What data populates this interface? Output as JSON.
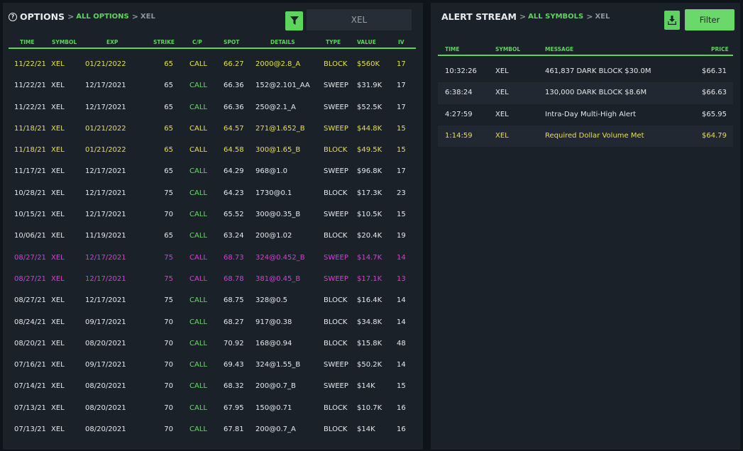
{
  "options": {
    "title": "OPTIONS",
    "crumb_link": "ALL OPTIONS",
    "crumb_symbol": "XEL",
    "search_value": "XEL",
    "headers": [
      "TIME",
      "SYMBOL",
      "EXP",
      "STRIKE",
      "C/P",
      "SPOT",
      "DETAILS",
      "TYPE",
      "VALUE",
      "IV"
    ],
    "rows": [
      {
        "time": "11/22/21",
        "symbol": "XEL",
        "exp": "01/21/2022",
        "strike": "65",
        "cp": "CALL",
        "spot": "66.27",
        "details": "2000@2.8_A",
        "type": "BLOCK",
        "value": "$560K",
        "iv": "17",
        "hl": "y"
      },
      {
        "time": "11/22/21",
        "symbol": "XEL",
        "exp": "12/17/2021",
        "strike": "65",
        "cp": "CALL",
        "spot": "66.36",
        "details": "152@2.101_AA",
        "type": "SWEEP",
        "value": "$31.9K",
        "iv": "17",
        "hl": ""
      },
      {
        "time": "11/22/21",
        "symbol": "XEL",
        "exp": "12/17/2021",
        "strike": "65",
        "cp": "CALL",
        "spot": "66.36",
        "details": "250@2.1_A",
        "type": "SWEEP",
        "value": "$52.5K",
        "iv": "17",
        "hl": ""
      },
      {
        "time": "11/18/21",
        "symbol": "XEL",
        "exp": "01/21/2022",
        "strike": "65",
        "cp": "CALL",
        "spot": "64.57",
        "details": "271@1.652_B",
        "type": "SWEEP",
        "value": "$44.8K",
        "iv": "15",
        "hl": "y"
      },
      {
        "time": "11/18/21",
        "symbol": "XEL",
        "exp": "01/21/2022",
        "strike": "65",
        "cp": "CALL",
        "spot": "64.58",
        "details": "300@1.65_B",
        "type": "BLOCK",
        "value": "$49.5K",
        "iv": "15",
        "hl": "y"
      },
      {
        "time": "11/17/21",
        "symbol": "XEL",
        "exp": "12/17/2021",
        "strike": "65",
        "cp": "CALL",
        "spot": "64.29",
        "details": "968@1.0",
        "type": "SWEEP",
        "value": "$96.8K",
        "iv": "17",
        "hl": ""
      },
      {
        "time": "10/28/21",
        "symbol": "XEL",
        "exp": "12/17/2021",
        "strike": "75",
        "cp": "CALL",
        "spot": "64.23",
        "details": "1730@0.1",
        "type": "BLOCK",
        "value": "$17.3K",
        "iv": "23",
        "hl": ""
      },
      {
        "time": "10/15/21",
        "symbol": "XEL",
        "exp": "12/17/2021",
        "strike": "70",
        "cp": "CALL",
        "spot": "65.52",
        "details": "300@0.35_B",
        "type": "SWEEP",
        "value": "$10.5K",
        "iv": "15",
        "hl": ""
      },
      {
        "time": "10/06/21",
        "symbol": "XEL",
        "exp": "11/19/2021",
        "strike": "65",
        "cp": "CALL",
        "spot": "63.24",
        "details": "200@1.02",
        "type": "BLOCK",
        "value": "$20.4K",
        "iv": "19",
        "hl": ""
      },
      {
        "time": "08/27/21",
        "symbol": "XEL",
        "exp": "12/17/2021",
        "strike": "75",
        "cp": "CALL",
        "spot": "68.73",
        "details": "324@0.452_B",
        "type": "SWEEP",
        "value": "$14.7K",
        "iv": "14",
        "hl": "m"
      },
      {
        "time": "08/27/21",
        "symbol": "XEL",
        "exp": "12/17/2021",
        "strike": "75",
        "cp": "CALL",
        "spot": "68.78",
        "details": "381@0.45_B",
        "type": "SWEEP",
        "value": "$17.1K",
        "iv": "13",
        "hl": "m"
      },
      {
        "time": "08/27/21",
        "symbol": "XEL",
        "exp": "12/17/2021",
        "strike": "75",
        "cp": "CALL",
        "spot": "68.75",
        "details": "328@0.5",
        "type": "BLOCK",
        "value": "$16.4K",
        "iv": "14",
        "hl": ""
      },
      {
        "time": "08/24/21",
        "symbol": "XEL",
        "exp": "09/17/2021",
        "strike": "70",
        "cp": "CALL",
        "spot": "68.27",
        "details": "917@0.38",
        "type": "BLOCK",
        "value": "$34.8K",
        "iv": "14",
        "hl": ""
      },
      {
        "time": "08/20/21",
        "symbol": "XEL",
        "exp": "08/20/2021",
        "strike": "70",
        "cp": "CALL",
        "spot": "70.92",
        "details": "168@0.94",
        "type": "BLOCK",
        "value": "$15.8K",
        "iv": "48",
        "hl": ""
      },
      {
        "time": "07/16/21",
        "symbol": "XEL",
        "exp": "09/17/2021",
        "strike": "70",
        "cp": "CALL",
        "spot": "69.43",
        "details": "324@1.55_B",
        "type": "SWEEP",
        "value": "$50.2K",
        "iv": "14",
        "hl": ""
      },
      {
        "time": "07/14/21",
        "symbol": "XEL",
        "exp": "08/20/2021",
        "strike": "70",
        "cp": "CALL",
        "spot": "68.32",
        "details": "200@0.7_B",
        "type": "SWEEP",
        "value": "$14K",
        "iv": "15",
        "hl": ""
      },
      {
        "time": "07/13/21",
        "symbol": "XEL",
        "exp": "08/20/2021",
        "strike": "70",
        "cp": "CALL",
        "spot": "67.95",
        "details": "150@0.71",
        "type": "BLOCK",
        "value": "$10.7K",
        "iv": "16",
        "hl": ""
      },
      {
        "time": "07/13/21",
        "symbol": "XEL",
        "exp": "08/20/2021",
        "strike": "70",
        "cp": "CALL",
        "spot": "67.81",
        "details": "200@0.7_A",
        "type": "BLOCK",
        "value": "$14K",
        "iv": "16",
        "hl": ""
      }
    ]
  },
  "alerts": {
    "title": "ALERT STREAM",
    "crumb_link": "ALL SYMBOLS",
    "crumb_symbol": "XEL",
    "filter_label": "Filter",
    "headers": [
      "TIME",
      "SYMBOL",
      "MESSAGE",
      "PRICE"
    ],
    "rows": [
      {
        "time": "10:32:26",
        "symbol": "XEL",
        "message": "461,837 DARK BLOCK $30.0M",
        "price": "$66.31",
        "hl": ""
      },
      {
        "time": "6:38:24",
        "symbol": "XEL",
        "message": "130,000 DARK BLOCK $8.6M",
        "price": "$66.63",
        "hl": ""
      },
      {
        "time": "4:27:59",
        "symbol": "XEL",
        "message": "Intra-Day Multi-High Alert",
        "price": "$65.95",
        "hl": ""
      },
      {
        "time": "1:14:59",
        "symbol": "XEL",
        "message": "Required Dollar Volume Met",
        "price": "$64.79",
        "hl": "y"
      }
    ]
  },
  "colors": {
    "accent": "#5fd35f",
    "highlight_yellow": "#e6e04a",
    "highlight_magenta": "#d63fd6",
    "panel": "#1b2129",
    "background": "#0f141a"
  },
  "icons": {
    "options_title": "help-circle-icon",
    "filter": "funnel-icon",
    "download": "download-icon",
    "breadcrumb": "chevron-right-icon"
  }
}
